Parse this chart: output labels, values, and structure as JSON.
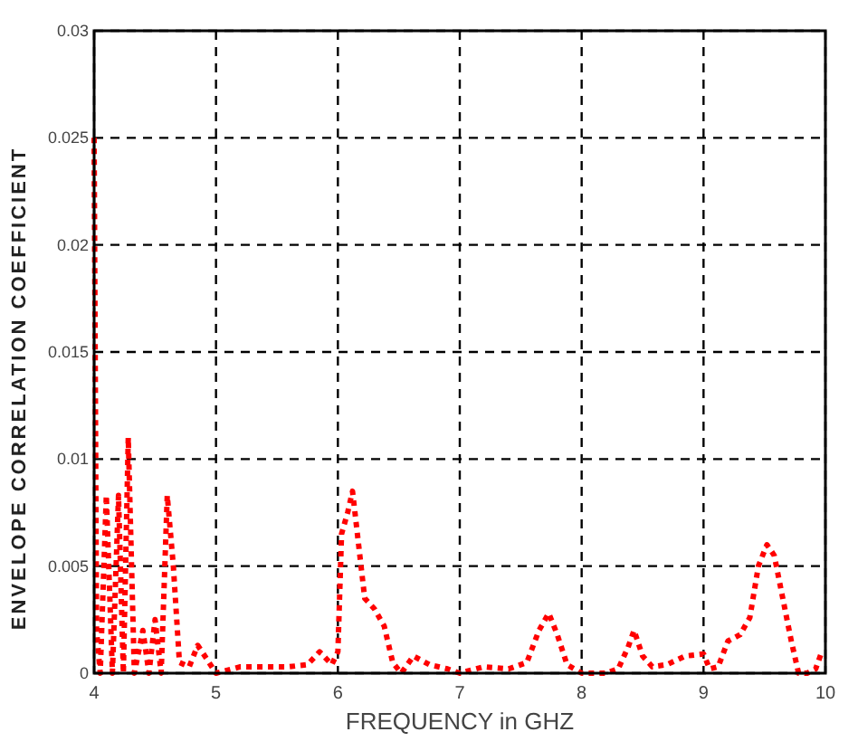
{
  "chart_data": {
    "type": "line",
    "xlabel": "FREQUENCY in GHZ",
    "ylabel": "ENVELOPE CORRELATION COEFFICIENT",
    "xlim": [
      4,
      10
    ],
    "ylim": [
      0,
      0.03
    ],
    "xticks": [
      4,
      5,
      6,
      7,
      8,
      9,
      10
    ],
    "yticks": [
      0,
      0.005,
      0.01,
      0.015,
      0.02,
      0.025,
      0.03
    ],
    "grid": true,
    "line_style": "dotted",
    "series": [
      {
        "color": "#ff0000",
        "x": [
          4,
          4.02,
          4.05,
          4.1,
          4.15,
          4.2,
          4.24,
          4.28,
          4.33,
          4.4,
          4.45,
          4.5,
          4.55,
          4.6,
          4.65,
          4.7,
          4.78,
          4.85,
          4.92,
          5,
          5.2,
          5.4,
          5.6,
          5.75,
          5.85,
          5.95,
          6,
          6.03,
          6.08,
          6.12,
          6.17,
          6.22,
          6.3,
          6.38,
          6.45,
          6.52,
          6.62,
          6.75,
          6.9,
          7,
          7.2,
          7.4,
          7.55,
          7.65,
          7.73,
          7.8,
          7.88,
          8,
          8.2,
          8.3,
          8.38,
          8.43,
          8.5,
          8.58,
          8.7,
          8.85,
          9,
          9.05,
          9.12,
          9.2,
          9.3,
          9.38,
          9.45,
          9.52,
          9.58,
          9.65,
          9.72,
          9.78,
          9.85,
          9.92,
          9.97
        ],
        "values": [
          0.025,
          0.002,
          0,
          0.0083,
          0,
          0.0083,
          0,
          0.011,
          0,
          0.002,
          0,
          0.0025,
          0,
          0.0083,
          0.005,
          0.0005,
          0.0003,
          0.0013,
          0.0007,
          0,
          0.0003,
          0.0003,
          0.0003,
          0.0004,
          0.001,
          0.0004,
          0.001,
          0.0065,
          0.0075,
          0.0085,
          0.006,
          0.0035,
          0.003,
          0.0022,
          0.0005,
          0,
          0.0008,
          0.0004,
          0.0002,
          0,
          0.0003,
          0.0002,
          0.0005,
          0.002,
          0.0028,
          0.0018,
          0.0004,
          0,
          0,
          0.0002,
          0.0012,
          0.002,
          0.0008,
          0.0003,
          0.0004,
          0.0008,
          0.0009,
          0.0002,
          0.0003,
          0.0015,
          0.0018,
          0.0026,
          0.005,
          0.006,
          0.0055,
          0.0035,
          0.0015,
          0,
          0,
          0.0002,
          0.001
        ]
      }
    ]
  }
}
